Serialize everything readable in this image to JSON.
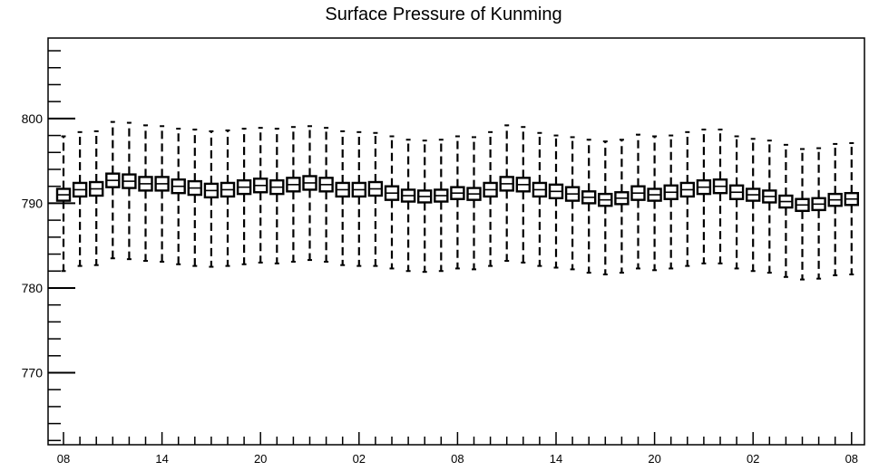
{
  "chart_data": {
    "type": "box",
    "title": "Surface Pressure of Kunming",
    "xlabel": "",
    "ylabel": "",
    "ylim": [
      761.5,
      809.5
    ],
    "y_ticks": [
      770,
      780,
      790,
      800
    ],
    "x_tick_labels": [
      "08",
      "14",
      "20",
      "02",
      "08",
      "14",
      "20",
      "02",
      "08"
    ],
    "x_tick_every": 6,
    "grid": false,
    "series": [
      {
        "mean": [
          791.0,
          791.6,
          791.7,
          792.7,
          792.6,
          792.3,
          792.3,
          792.0,
          791.8,
          791.5,
          791.6,
          791.9,
          792.1,
          791.9,
          792.2,
          792.4,
          792.2,
          791.6,
          791.6,
          791.7,
          791.2,
          790.9,
          790.8,
          790.9,
          791.2,
          791.1,
          791.6,
          792.3,
          792.2,
          791.6,
          791.4,
          791.1,
          790.7,
          790.4,
          790.6,
          791.2,
          791.0,
          791.3,
          791.6,
          791.9,
          792.0,
          791.3,
          791.0,
          790.8,
          790.2,
          789.8,
          789.9,
          790.4,
          790.5
        ],
        "q_upper": [
          791.7,
          792.4,
          792.5,
          793.5,
          793.4,
          793.1,
          793.1,
          792.8,
          792.6,
          792.3,
          792.4,
          792.7,
          792.9,
          792.7,
          793.0,
          793.2,
          793.0,
          792.4,
          792.4,
          792.5,
          792.0,
          791.6,
          791.5,
          791.6,
          791.9,
          791.8,
          792.4,
          793.1,
          793.0,
          792.4,
          792.2,
          791.9,
          791.4,
          791.1,
          791.3,
          792.0,
          791.7,
          792.1,
          792.4,
          792.7,
          792.8,
          792.1,
          791.7,
          791.5,
          790.9,
          790.5,
          790.6,
          791.1,
          791.2
        ],
        "q_lower": [
          790.3,
          790.8,
          790.9,
          791.9,
          791.8,
          791.5,
          791.5,
          791.2,
          791.0,
          790.7,
          790.8,
          791.1,
          791.3,
          791.1,
          791.4,
          791.6,
          791.4,
          790.8,
          790.8,
          790.9,
          790.4,
          790.2,
          790.1,
          790.2,
          790.5,
          790.4,
          790.8,
          791.5,
          791.4,
          790.8,
          790.6,
          790.3,
          790.0,
          789.7,
          789.9,
          790.4,
          790.3,
          790.5,
          790.8,
          791.1,
          791.2,
          790.5,
          790.3,
          790.1,
          789.5,
          789.1,
          789.2,
          789.7,
          789.8
        ],
        "max": [
          797.9,
          798.4,
          798.5,
          799.6,
          799.5,
          799.2,
          799.1,
          798.8,
          798.7,
          798.5,
          798.6,
          798.8,
          798.9,
          798.8,
          799.0,
          799.1,
          798.9,
          798.5,
          798.4,
          798.3,
          797.9,
          797.5,
          797.4,
          797.5,
          797.9,
          797.8,
          798.4,
          799.2,
          799.0,
          798.3,
          798.0,
          797.8,
          797.5,
          797.3,
          797.5,
          798.1,
          797.9,
          798.0,
          798.4,
          798.7,
          798.7,
          797.9,
          797.6,
          797.4,
          796.9,
          796.4,
          796.5,
          797.0,
          797.1
        ],
        "min": [
          782.0,
          782.6,
          782.7,
          783.5,
          783.4,
          783.2,
          783.1,
          782.8,
          782.6,
          782.5,
          782.6,
          782.8,
          783.0,
          782.9,
          783.1,
          783.3,
          783.1,
          782.7,
          782.6,
          782.6,
          782.3,
          782.0,
          781.9,
          782.0,
          782.3,
          782.2,
          782.6,
          783.2,
          783.0,
          782.6,
          782.4,
          782.2,
          781.8,
          781.6,
          781.8,
          782.3,
          782.1,
          782.3,
          782.6,
          782.9,
          782.9,
          782.3,
          782.0,
          781.8,
          781.3,
          781.0,
          781.1,
          781.5,
          781.6
        ]
      }
    ]
  }
}
